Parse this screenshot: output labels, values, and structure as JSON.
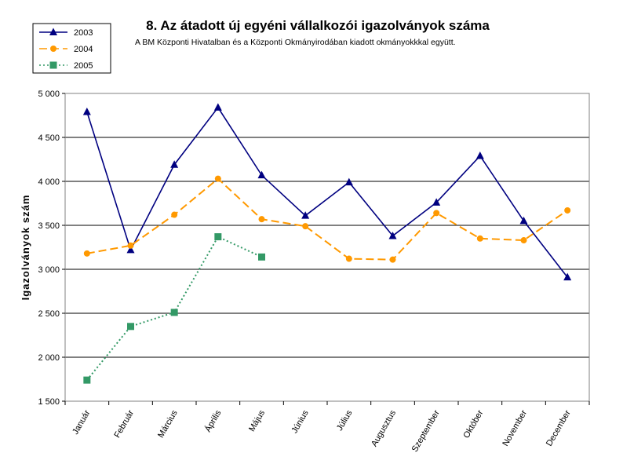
{
  "chart_data": {
    "type": "line",
    "title": "8. Az átadott új egyéni vállalkozói  igazolványok száma",
    "subtitle": "A BM Központi Hivatalban és a Központi Okmányirodában kiadott okmányokkkal együtt.",
    "xlabel": "",
    "ylabel": "Igazolványok szám",
    "ylim": [
      1500,
      5000
    ],
    "yticks": [
      1500,
      2000,
      2500,
      3000,
      3500,
      4000,
      4500,
      5000
    ],
    "ytick_labels": [
      "1 500",
      "2 000",
      "2 500",
      "3 000",
      "3 500",
      "4 000",
      "4 500",
      "5 000"
    ],
    "grid": true,
    "legend_position": "top-left",
    "categories": [
      "Január",
      "Február",
      "Március",
      "Április",
      "Május",
      "Június",
      "Július",
      "Augusztus",
      "Szeptember",
      "Október",
      "November",
      "December"
    ],
    "series": [
      {
        "name": "2003",
        "color": "#000080",
        "line_style": "solid",
        "marker": "triangle",
        "values": [
          4790,
          3220,
          4190,
          4840,
          4070,
          3610,
          3990,
          3380,
          3760,
          4290,
          3550,
          2910
        ]
      },
      {
        "name": "2004",
        "color": "#FF9900",
        "line_style": "dashed",
        "marker": "circle",
        "values": [
          3180,
          3270,
          3620,
          4030,
          3570,
          3490,
          3120,
          3110,
          3640,
          3350,
          3330,
          3670
        ]
      },
      {
        "name": "2005",
        "color": "#339966",
        "line_style": "dotted",
        "marker": "square",
        "values": [
          1740,
          2350,
          2510,
          3370,
          3140,
          null,
          null,
          null,
          null,
          null,
          null,
          null
        ]
      }
    ]
  }
}
